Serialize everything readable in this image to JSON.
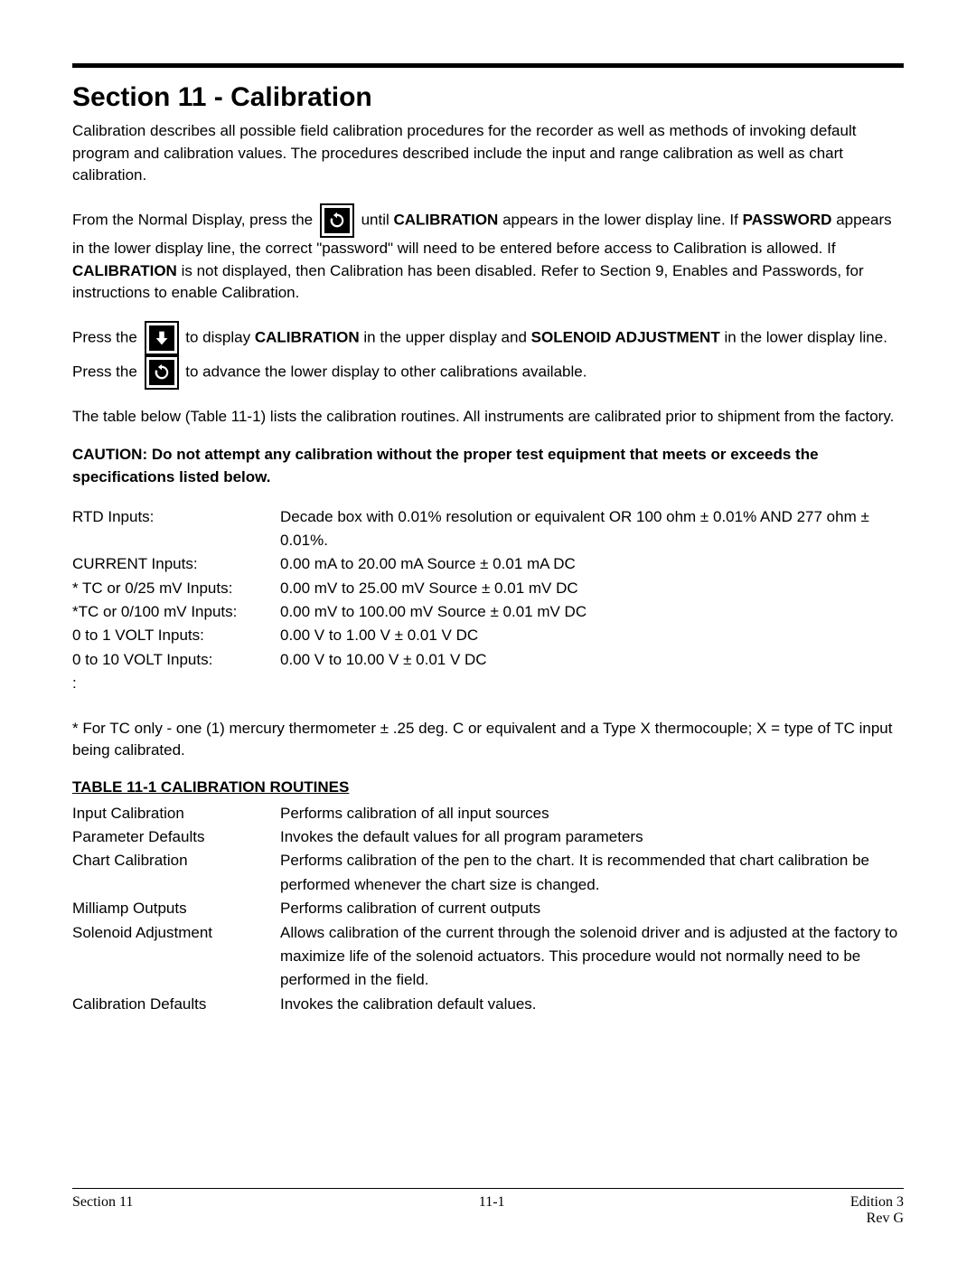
{
  "header": {
    "title": "Section 11 - Calibration"
  },
  "paragraphs": {
    "intro": "Calibration describes all possible field calibration procedures for the recorder as well as methods of invoking default program and calibration values.  The procedures described include the input and range calibration as well as chart calibration.",
    "p2_pre": "From the Normal Display, press the ",
    "p2_mid1": " until ",
    "p2_cal": "CALIBRATION",
    "p2_mid2": " appears in the lower display line.  If ",
    "p2_pwd": "PASSWORD",
    "p2_post": " appears in the lower display  line, the correct \"password\" will need to be entered before access to Calibration is allowed.  If ",
    "p2_cal2": "CALIBRATION",
    "p2_tail": " is not displayed, then Calibration has been disabled.  Refer to Section 9, Enables and Passwords, for instructions to enable Calibration.",
    "p3_pre": "Press the ",
    "p3_mid1": " to display ",
    "p3_cal": "CALIBRATION",
    "p3_mid2": " in the upper display and ",
    "p3_sol": "SOLENOID ADJUSTMENT",
    "p3_mid3": " in the lower display line.  Press the ",
    "p3_tail": " to advance the lower display to other calibrations available.",
    "p4": " The table  below (Table 11-1) lists the calibration routines.  All instruments are calibrated prior to shipment from the factory.",
    "caution": "CAUTION:  Do not attempt any calibration without the proper test equipment that meets or exceeds the specifications listed below.",
    "tc_note": "* For TC only - one (1) mercury thermometer ± .25 deg. C or equivalent and a Type X thermocouple; X = type of TC input being calibrated."
  },
  "specs": [
    {
      "label": "RTD Inputs:",
      "value": "Decade box with 0.01% resolution or equivalent OR 100 ohm ± 0.01% AND 277 ohm ± 0.01%."
    },
    {
      "label": "CURRENT Inputs:",
      "value": "0.00 mA to 20.00 mA Source ± 0.01 mA DC"
    },
    {
      "label": "* TC or 0/25 mV Inputs:",
      "value": "0.00 mV to 25.00 mV Source ± 0.01 mV DC"
    },
    {
      "label": "*TC or 0/100 mV Inputs:",
      "value": "0.00 mV to 100.00 mV Source ± 0.01 mV DC"
    },
    {
      "label": "0 to 1 VOLT Inputs:",
      "value": "0.00 V to 1.00 V ± 0.01 V DC"
    },
    {
      "label": "0 to 10 VOLT Inputs:",
      "value": "0.00 V to 10.00 V ± 0.01 V DC"
    },
    {
      "label": ":",
      "value": ""
    }
  ],
  "routines_title": "TABLE 11-1  CALIBRATION ROUTINES",
  "routines": [
    {
      "label": "Input Calibration",
      "value": "Performs calibration of all input sources"
    },
    {
      "label": "Parameter Defaults",
      "value": "Invokes the default values for all program parameters"
    },
    {
      "label": "Chart Calibration",
      "value": "Performs calibration of the pen to the chart.  It is recommended that chart calibration be performed whenever the chart size is changed."
    },
    {
      "label": "Milliamp Outputs",
      "value": "Performs calibration of current outputs"
    },
    {
      "label": "Solenoid Adjustment",
      "value": "Allows calibration of the current through the solenoid driver and is adjusted at the factory to maximize life of the solenoid actuators.  This procedure would not normally need to be performed in the field."
    },
    {
      "label": "Calibration Defaults",
      "value": "Invokes the calibration default values."
    }
  ],
  "footer": {
    "left": "Section 11",
    "center": "11-1",
    "right1": "Edition 3",
    "right2": "Rev G"
  }
}
